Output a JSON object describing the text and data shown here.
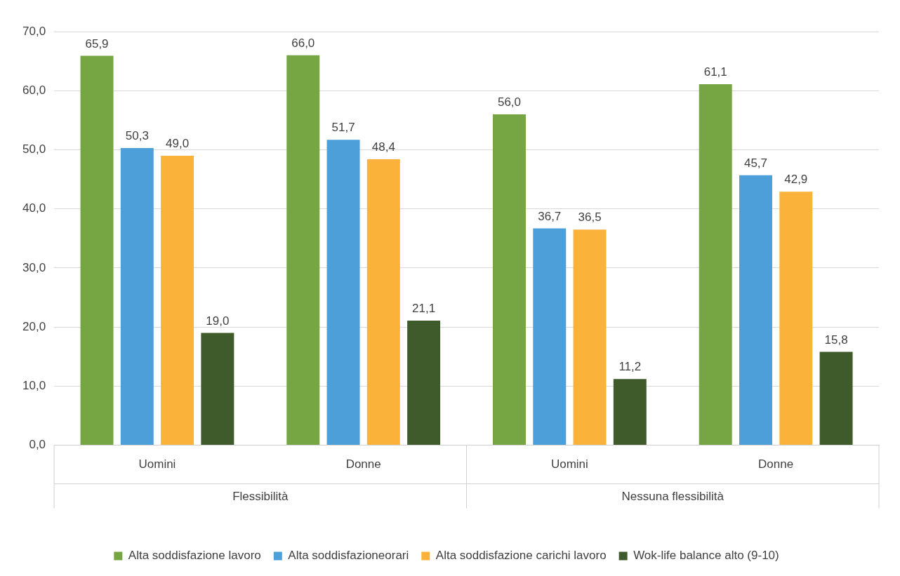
{
  "chart_data": {
    "type": "bar",
    "categories": [
      "Uomini",
      "Donne",
      "Uomini",
      "Donne"
    ],
    "series": [
      {
        "name": "Alta soddisfazione lavoro",
        "color": "#76a543",
        "values": [
          65.9,
          66.0,
          56.0,
          61.1
        ],
        "value_labels": [
          "65,9",
          "66,0",
          "56,0",
          "61,1"
        ]
      },
      {
        "name": "Alta soddisfazioneorari",
        "color": "#4d9fd9",
        "values": [
          50.3,
          51.7,
          36.7,
          45.7
        ],
        "value_labels": [
          "50,3",
          "51,7",
          "36,7",
          "45,7"
        ]
      },
      {
        "name": "Alta soddisfazione carichi lavoro",
        "color": "#fbb23a",
        "values": [
          49.0,
          48.4,
          36.5,
          42.9
        ],
        "value_labels": [
          "49,0",
          "48,4",
          "36,5",
          "42,9"
        ]
      },
      {
        "name": "Wok-life balance alto (9-10)",
        "color": "#3f5b2b",
        "values": [
          19.0,
          21.1,
          11.2,
          15.8
        ],
        "value_labels": [
          "19,0",
          "21,1",
          "11,2",
          "15,8"
        ]
      }
    ],
    "annotations": [
      "Flessibilità",
      "Nessuna flessibilità"
    ],
    "ylim": [
      0,
      70
    ],
    "yticks": [
      {
        "value": 0,
        "label": "0,0"
      },
      {
        "value": 10,
        "label": "10,0"
      },
      {
        "value": 20,
        "label": "20,0"
      },
      {
        "value": 30,
        "label": "30,0"
      },
      {
        "value": 40,
        "label": "40,0"
      },
      {
        "value": 50,
        "label": "50,0"
      },
      {
        "value": 60,
        "label": "60,0"
      },
      {
        "value": 70,
        "label": "70,0"
      }
    ],
    "grid": "y",
    "legend": "bottom"
  }
}
